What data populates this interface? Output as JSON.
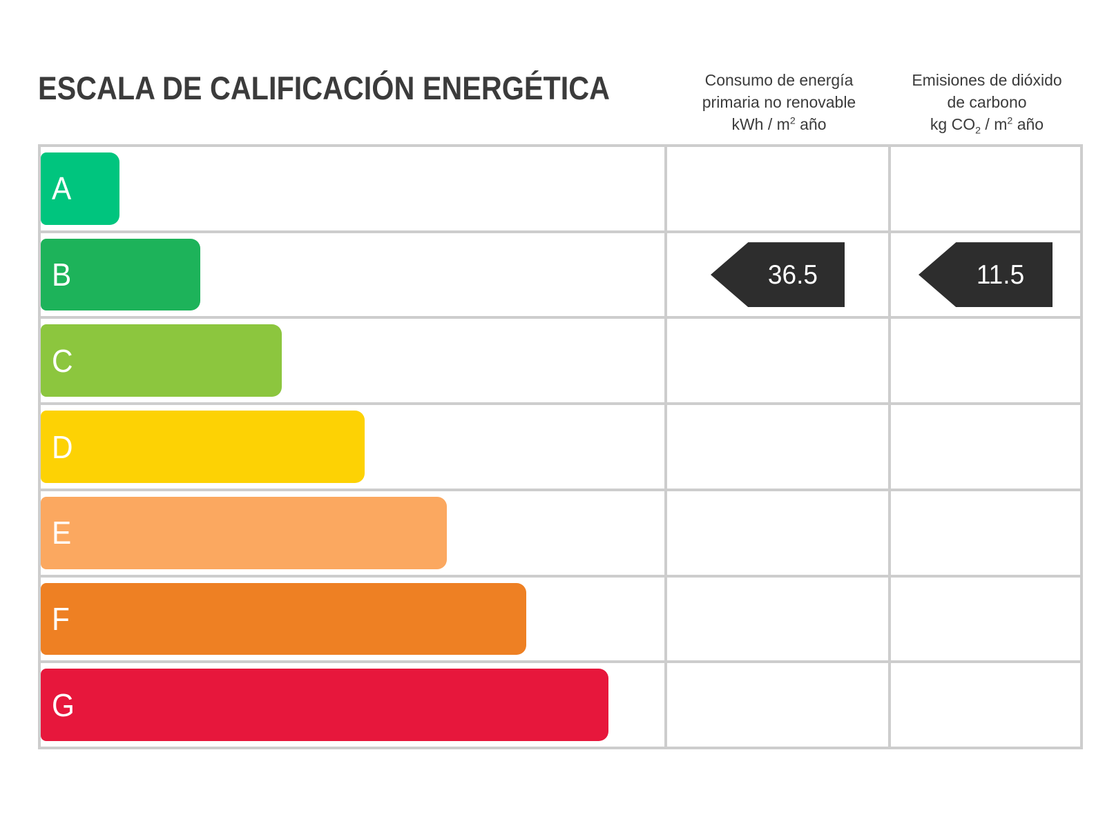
{
  "header": {
    "title": "ESCALA DE CALIFICACIÓN ENERGÉTICA",
    "consumption": {
      "line1": "Consumo de energía",
      "line2": "primaria no renovable",
      "unit": {
        "pre": "kWh / m",
        "sup": "2",
        "post": " año"
      }
    },
    "emissions": {
      "line1": "Emisiones de dióxido",
      "line2": "de carbono",
      "unit": {
        "pre": "kg CO",
        "sub": "2",
        "mid": " / m",
        "sup": "2",
        "post": " año"
      }
    }
  },
  "marker_color": "#2d2d2d",
  "grid_color": "#cdcdcd",
  "ratings": [
    {
      "letter": "A",
      "color": "#00c57e",
      "width_pct": 12.6
    },
    {
      "letter": "B",
      "color": "#1db35a",
      "width_pct": 25.6,
      "values": {
        "consumption": "36.5",
        "emissions": "11.5"
      }
    },
    {
      "letter": "C",
      "color": "#8cc63e",
      "width_pct": 38.7
    },
    {
      "letter": "D",
      "color": "#fdd204",
      "width_pct": 51.9
    },
    {
      "letter": "E",
      "color": "#fba860",
      "width_pct": 65.1
    },
    {
      "letter": "F",
      "color": "#ee8023",
      "width_pct": 77.9
    },
    {
      "letter": "G",
      "color": "#e7173c",
      "width_pct": 91.0
    }
  ],
  "chart_data": {
    "type": "bar",
    "orientation": "horizontal",
    "title": "ESCALA DE CALIFICACIÓN ENERGÉTICA",
    "categories": [
      "A",
      "B",
      "C",
      "D",
      "E",
      "F",
      "G"
    ],
    "bar_relative_widths_pct": [
      12.6,
      25.6,
      38.7,
      51.9,
      65.1,
      77.9,
      91.0
    ],
    "bar_colors": [
      "#00c57e",
      "#1db35a",
      "#8cc63e",
      "#fdd204",
      "#fba860",
      "#ee8023",
      "#e7173c"
    ],
    "columns": [
      "Consumo de energía primaria no renovable (kWh / m² año)",
      "Emisiones de dióxido de carbono (kg CO₂ / m² año)"
    ],
    "annotations": [
      {
        "category": "B",
        "column": "Consumo de energía primaria no renovable (kWh / m² año)",
        "value": 36.5
      },
      {
        "category": "B",
        "column": "Emisiones de dióxido de carbono (kg CO₂ / m² año)",
        "value": 11.5
      }
    ],
    "legend": false,
    "grid": true
  }
}
